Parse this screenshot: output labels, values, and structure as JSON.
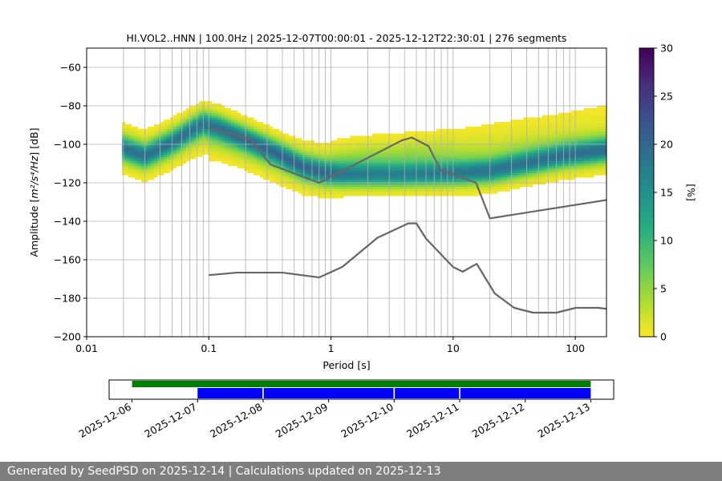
{
  "chart_data": [
    {
      "type": "heatmap",
      "title": "HI.VOL2..HNN | 100.0Hz | 2025-12-07T00:00:01 - 2025-12-12T22:30:01 | 276 segments",
      "xlabel": "Period [s]",
      "ylabel_main": "Amplitude [",
      "ylabel_math": "m²/s⁴/Hz",
      "ylabel_end": "] [dB]",
      "x_scale": "log",
      "xlim": [
        0.01,
        180
      ],
      "ylim": [
        -200,
        -50
      ],
      "x_ticks": [
        0.01,
        0.1,
        1,
        10,
        100
      ],
      "x_tick_labels": [
        "0.01",
        "0.1",
        "1",
        "10",
        "100"
      ],
      "y_ticks": [
        -200,
        -180,
        -160,
        -140,
        -120,
        -100,
        -80,
        -60
      ],
      "y_tick_labels": [
        "−200",
        "−180",
        "−160",
        "−140",
        "−120",
        "−100",
        "−80",
        "−60"
      ],
      "grid": true,
      "grid_periods": [
        0.02,
        0.03,
        0.04,
        0.05,
        0.06,
        0.07,
        0.08,
        0.09,
        0.1,
        0.2,
        0.3,
        0.4,
        0.5,
        0.6,
        0.7,
        0.8,
        0.9,
        1,
        2,
        3,
        4,
        5,
        6,
        7,
        8,
        9,
        10,
        20,
        30,
        40,
        50,
        60,
        70,
        80,
        90,
        100
      ],
      "colorbar": {
        "label": "[%]",
        "range": [
          0,
          30
        ],
        "ticks": [
          0,
          5,
          10,
          15,
          20,
          25,
          30
        ],
        "tick_labels": [
          "0",
          "5",
          "10",
          "15",
          "20",
          "25",
          "30"
        ],
        "colormap": "viridis_r"
      },
      "mode_curve": {
        "period": [
          0.02,
          0.03,
          0.05,
          0.07,
          0.09,
          0.12,
          0.2,
          0.35,
          0.6,
          0.9,
          1.2,
          2,
          4,
          7,
          12,
          20,
          40,
          80,
          180
        ],
        "db": [
          -102,
          -106,
          -99,
          -93,
          -89,
          -91,
          -97,
          -104,
          -112,
          -115,
          -116,
          -116,
          -116,
          -115.5,
          -115,
          -114,
          -110,
          -106,
          -103
        ]
      },
      "density_bands": [
        {
          "period": [
            0.02,
            0.03,
            0.05,
            0.07,
            0.09,
            0.12,
            0.2,
            0.35,
            0.6,
            0.9,
            1.2,
            2,
            4,
            7,
            12,
            20,
            40,
            80,
            180
          ],
          "db": [
            -102,
            -106,
            -99,
            -93,
            -89,
            -91,
            -97,
            -104,
            -112,
            -115,
            -116,
            -116,
            -116,
            -115.5,
            -115,
            -114,
            -110,
            -106,
            -103
          ],
          "spread_db": 4,
          "peak_percent": 15
        },
        {
          "period": [
            0.02,
            0.03,
            0.05,
            0.07,
            0.09,
            0.12,
            0.2,
            0.35,
            0.6,
            0.9,
            1.2,
            2,
            4,
            7,
            12,
            20,
            40,
            80,
            180
          ],
          "db": [
            -102,
            -106,
            -100,
            -95,
            -92,
            -94,
            -100,
            -107,
            -113,
            -114,
            -111,
            -109,
            -109,
            -110,
            -111,
            -111,
            -107,
            -104,
            -102
          ],
          "spread_db": 6,
          "peak_percent": 4
        },
        {
          "period": [
            0.1,
            0.2,
            0.4,
            0.8,
            1.5,
            3,
            6,
            12,
            25,
            50,
            100,
            180
          ],
          "db": [
            -98,
            -100,
            -106,
            -110,
            -108,
            -106,
            -105,
            -104,
            -102,
            -100,
            -98,
            -96
          ],
          "spread_db": 5,
          "peak_percent": 1.5
        },
        {
          "period": [
            4,
            8,
            15,
            25,
            40,
            70,
            120,
            180
          ],
          "db": [
            -101,
            -98,
            -96,
            -93,
            -91,
            -89,
            -86,
            -84
          ],
          "spread_db": 4,
          "peak_percent": 0.6
        }
      ],
      "high_noise_model": {
        "period": [
          0.1,
          0.22,
          0.32,
          0.8,
          3.8,
          4.6,
          6.3,
          7.9,
          15.4,
          20,
          354.8
        ],
        "db": [
          -91.5,
          -97.4,
          -110.5,
          -120,
          -98,
          -96.5,
          -101,
          -113.5,
          -120,
          -138.5,
          -126
        ]
      },
      "low_noise_model": {
        "period": [
          0.1,
          0.17,
          0.4,
          0.8,
          1.24,
          2.4,
          4.3,
          5,
          6,
          10,
          12,
          15.6,
          21.9,
          31.6,
          45,
          70,
          101,
          154,
          328
        ],
        "db": [
          -168,
          -166.7,
          -166.7,
          -169.2,
          -163.7,
          -148.6,
          -141.1,
          -141.1,
          -149,
          -163.8,
          -166.2,
          -162.1,
          -177.5,
          -185,
          -187.5,
          -187.5,
          -185,
          -185,
          -187.5
        ]
      }
    },
    {
      "type": "timeline",
      "x_tick_labels": [
        "2025-12-06",
        "2025-12-07",
        "2025-12-08",
        "2025-12-09",
        "2025-12-10",
        "2025-12-11",
        "2025-12-12",
        "2025-12-13"
      ],
      "xlim_days": [
        -0.35,
        7.35
      ],
      "availability": {
        "start_day": 0,
        "end_day": 7,
        "color": "#008000"
      },
      "segments": [
        {
          "start_day": 1,
          "end_day": 1.99,
          "color": "#0000ff"
        },
        {
          "start_day": 2.01,
          "end_day": 3.99,
          "color": "#0000ff"
        },
        {
          "start_day": 4.01,
          "end_day": 4.99,
          "color": "#0000ff"
        },
        {
          "start_day": 5.01,
          "end_day": 7,
          "color": "#0000ff"
        }
      ]
    }
  ],
  "footer": {
    "text": "Generated by SeedPSD on 2025-12-14 | Calculations updated on 2025-12-13"
  }
}
